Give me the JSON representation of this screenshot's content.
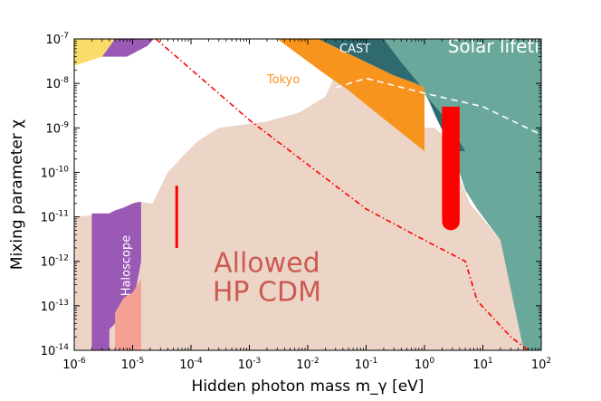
{
  "chart_data": {
    "type": "area",
    "xlabel": "Hidden photon mass m_γ [eV]",
    "ylabel": "Mixing parameter χ",
    "xscale": "log",
    "yscale": "log",
    "xlim": [
      1e-06,
      100
    ],
    "ylim": [
      1e-14,
      1e-07
    ],
    "x_ticks": [
      {
        "base": "10",
        "exp": "-6"
      },
      {
        "base": "10",
        "exp": "-5"
      },
      {
        "base": "10",
        "exp": "-4"
      },
      {
        "base": "10",
        "exp": "-3"
      },
      {
        "base": "10",
        "exp": "-2"
      },
      {
        "base": "10",
        "exp": "-1"
      },
      {
        "base": "10",
        "exp": "0"
      },
      {
        "base": "10",
        "exp": "1"
      },
      {
        "base": "10",
        "exp": "2"
      }
    ],
    "y_ticks": [
      {
        "base": "10",
        "exp": "-14"
      },
      {
        "base": "10",
        "exp": "-13"
      },
      {
        "base": "10",
        "exp": "-12"
      },
      {
        "base": "10",
        "exp": "-11"
      },
      {
        "base": "10",
        "exp": "-10"
      },
      {
        "base": "10",
        "exp": "-9"
      },
      {
        "base": "10",
        "exp": "-8"
      },
      {
        "base": "10",
        "exp": "-7"
      }
    ],
    "colors": {
      "allowed": "#ecd5c7",
      "solar": "#6aa89c",
      "cast": "#2e6a70",
      "tokyo": "#f7941d",
      "haloscope_purple": "#9b59b6",
      "haloscope_pink": "#f4a093",
      "yellow": "#f9dc6a",
      "red": "#ff0000"
    },
    "regions": [
      {
        "id": "allowed",
        "label_lines": [
          "Allowed",
          "HP CDM"
        ],
        "color": "#ecd5c7",
        "points": [
          [
            1e-06,
            1e-14
          ],
          [
            1e-06,
            1e-11
          ],
          [
            4e-06,
            1.2e-11
          ],
          [
            1.2e-05,
            2.2e-11
          ],
          [
            2.2e-05,
            2e-11
          ],
          [
            4e-05,
            1e-10
          ],
          [
            7e-05,
            2.2e-10
          ],
          [
            0.00013,
            5e-10
          ],
          [
            0.0003,
            1e-09
          ],
          [
            0.002,
            1.4e-09
          ],
          [
            0.007,
            2.2e-09
          ],
          [
            0.02,
            5e-09
          ],
          [
            0.03,
            1.6e-08
          ],
          [
            0.5,
            6e-09
          ],
          [
            1,
            3.2e-09
          ],
          [
            1,
            1e-09
          ],
          [
            1.5,
            1e-09
          ],
          [
            2,
            7e-10
          ],
          [
            6,
            2e-11
          ],
          [
            20,
            3e-12
          ],
          [
            40,
            3e-13
          ],
          [
            100,
            1e-14
          ]
        ]
      },
      {
        "id": "solar",
        "label": "Solar lifetime",
        "color": "#6aa89c",
        "points": [
          [
            0.2,
            1e-07
          ],
          [
            100,
            1e-07
          ],
          [
            100,
            1e-14
          ],
          [
            50,
            1e-14
          ],
          [
            20,
            3e-12
          ],
          [
            8,
            1.5e-11
          ],
          [
            5,
            4e-11
          ],
          [
            3,
            3e-10
          ],
          [
            1.5,
            2e-09
          ],
          [
            1.2,
            4e-09
          ],
          [
            0.8,
            1e-08
          ],
          [
            0.4,
            3e-08
          ]
        ]
      },
      {
        "id": "cast",
        "label": "CAST",
        "color": "#2e6a70",
        "points": [
          [
            0.015,
            1e-07
          ],
          [
            0.2,
            1e-07
          ],
          [
            0.4,
            3e-08
          ],
          [
            0.8,
            1e-08
          ],
          [
            1.2,
            4e-09
          ],
          [
            1.5,
            2e-09
          ],
          [
            3,
            3e-10
          ],
          [
            5,
            3e-10
          ],
          [
            2,
            2e-09
          ],
          [
            0.7,
            1e-08
          ],
          [
            0.3,
            1.5e-08
          ],
          [
            0.1,
            3e-08
          ]
        ]
      },
      {
        "id": "tokyo",
        "label": "Tokyo",
        "color": "#f7941d",
        "points": [
          [
            0.003,
            1e-07
          ],
          [
            0.015,
            1e-07
          ],
          [
            0.1,
            3e-08
          ],
          [
            0.3,
            1.5e-08
          ],
          [
            0.7,
            1e-08
          ],
          [
            1,
            8e-09
          ],
          [
            1,
            3e-10
          ],
          [
            0.2,
            1.6e-09
          ],
          [
            0.05,
            7e-09
          ],
          [
            0.02,
            1.6e-08
          ]
        ]
      },
      {
        "id": "haloscope_purple",
        "label": "Haloscope",
        "color": "#9b59b6",
        "points": [
          [
            2e-06,
            1e-14
          ],
          [
            2e-06,
            1.2e-11
          ],
          [
            4e-06,
            1.2e-11
          ],
          [
            5e-06,
            1.4e-11
          ],
          [
            7e-06,
            1.6e-11
          ],
          [
            1e-05,
            2e-11
          ],
          [
            1.4e-05,
            2.2e-11
          ],
          [
            1.4e-05,
            1e-12
          ],
          [
            1e-05,
            1e-13
          ],
          [
            6e-06,
            5e-14
          ],
          [
            4e-06,
            3e-14
          ],
          [
            4e-06,
            1e-14
          ]
        ]
      },
      {
        "id": "haloscope_pink",
        "color": "#f4a093",
        "points": [
          [
            5e-06,
            1e-14
          ],
          [
            5e-06,
            7e-14
          ],
          [
            7e-06,
            1.5e-13
          ],
          [
            1e-05,
            2e-13
          ],
          [
            1.4e-05,
            4e-13
          ],
          [
            1.4e-05,
            1e-14
          ]
        ]
      },
      {
        "id": "yellow",
        "color": "#f9dc6a",
        "points": [
          [
            1e-06,
            1e-07
          ],
          [
            5e-06,
            1e-07
          ],
          [
            3e-06,
            4e-08
          ],
          [
            1e-06,
            2.5e-08
          ]
        ]
      },
      {
        "id": "purple_top",
        "color": "#9b59b6",
        "points": [
          [
            5e-06,
            1e-07
          ],
          [
            2.3e-05,
            1e-07
          ],
          [
            1.8e-05,
            7e-08
          ],
          [
            8e-06,
            4e-08
          ],
          [
            3e-06,
            4e-08
          ]
        ]
      }
    ],
    "red_bars": [
      {
        "x": 5.7e-05,
        "y_range": [
          2e-12,
          5e-11
        ]
      },
      {
        "x_range": [
          2,
          4
        ],
        "y_range": [
          5e-12,
          3e-09
        ],
        "rounded_bottom": true
      }
    ],
    "lines": [
      {
        "id": "dashed",
        "style": "dashed",
        "color": "#ffffff",
        "points": [
          [
            0.03,
            8e-09
          ],
          [
            0.1,
            1.3e-08
          ],
          [
            1,
            6e-09
          ],
          [
            10,
            3e-09
          ],
          [
            100,
            7e-10
          ]
        ]
      },
      {
        "id": "dashdot",
        "style": "dashdot",
        "color": "#ff0000",
        "points": [
          [
            2.5e-05,
            1e-07
          ],
          [
            0.001,
            1.5e-09
          ],
          [
            0.01,
            1.5e-10
          ],
          [
            0.1,
            1.5e-11
          ],
          [
            1,
            3e-12
          ],
          [
            5,
            1e-12
          ],
          [
            8,
            1.3e-13
          ],
          [
            30,
            2e-14
          ],
          [
            60,
            1e-14
          ]
        ]
      }
    ],
    "labels": [
      {
        "text": "Solar lifetin",
        "x": 2.5,
        "y": 5e-08,
        "color": "#ffffff",
        "size": 20
      },
      {
        "text": "CAST",
        "x": 0.035,
        "y": 5e-08,
        "color": "#ffffff",
        "size": 13
      },
      {
        "text": "Tokyo",
        "x": 0.002,
        "y": 1e-08,
        "color": "#f7941d",
        "size": 13
      },
      {
        "text": "Haloscope",
        "x": 9e-06,
        "y": 8e-13,
        "color": "#ffffff",
        "size": 13,
        "rotate": -90
      }
    ]
  }
}
